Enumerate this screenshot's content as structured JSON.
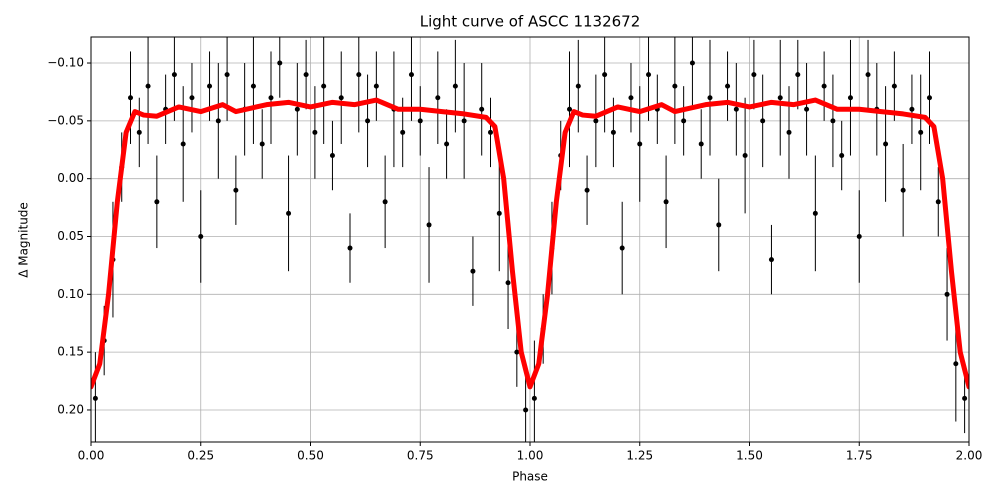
{
  "chart_data": {
    "type": "scatter",
    "title": "Light curve of ASCC 1132672",
    "x_label": "Phase",
    "y_label": "Δ Magnitude",
    "xlim": [
      0,
      2
    ],
    "ylim": [
      0.2277,
      -0.1225
    ],
    "inverted_y": true,
    "grid": true,
    "xticks": [
      {
        "value": 0,
        "label": "0.00"
      },
      {
        "value": 0.25,
        "label": "0.25"
      },
      {
        "value": 0.5,
        "label": "0.50"
      },
      {
        "value": 0.75,
        "label": "0.75"
      },
      {
        "value": 1,
        "label": "1.00"
      },
      {
        "value": 1.25,
        "label": "1.25"
      },
      {
        "value": 1.5,
        "label": "1.50"
      },
      {
        "value": 1.75,
        "label": "1.75"
      },
      {
        "value": 2,
        "label": "2.00"
      }
    ],
    "yticks": [
      {
        "value": -0.1,
        "label": "−0.10"
      },
      {
        "value": -0.05,
        "label": "−0.05"
      },
      {
        "value": 0,
        "label": "0.00"
      },
      {
        "value": 0.05,
        "label": "0.05"
      },
      {
        "value": 0.1,
        "label": "0.10"
      },
      {
        "value": 0.15,
        "label": "0.15"
      },
      {
        "value": 0.2,
        "label": "0.20"
      }
    ],
    "points": {
      "color": "#000000",
      "x": [
        0.01,
        0.03,
        0.05,
        0.07,
        0.09,
        0.11,
        0.13,
        0.15,
        0.17,
        0.19,
        0.21,
        0.23,
        0.25,
        0.27,
        0.29,
        0.31,
        0.33,
        0.35,
        0.37,
        0.39,
        0.41,
        0.43,
        0.45,
        0.47,
        0.49,
        0.51,
        0.53,
        0.55,
        0.57,
        0.59,
        0.61,
        0.63,
        0.65,
        0.67,
        0.69,
        0.71,
        0.73,
        0.75,
        0.77,
        0.79,
        0.81,
        0.83,
        0.85,
        0.87,
        0.89,
        0.91,
        0.93,
        0.95,
        0.97,
        0.99,
        1.01,
        1.03,
        1.05,
        1.07,
        1.09,
        1.11,
        1.13,
        1.15,
        1.17,
        1.19,
        1.21,
        1.23,
        1.25,
        1.27,
        1.29,
        1.31,
        1.33,
        1.35,
        1.37,
        1.39,
        1.41,
        1.43,
        1.45,
        1.47,
        1.49,
        1.51,
        1.53,
        1.55,
        1.57,
        1.59,
        1.61,
        1.63,
        1.65,
        1.67,
        1.69,
        1.71,
        1.73,
        1.75,
        1.77,
        1.79,
        1.81,
        1.83,
        1.85,
        1.87,
        1.89,
        1.91,
        1.93,
        1.95,
        1.97,
        1.99
      ],
      "y": [
        0.19,
        0.14,
        0.07,
        -0.01,
        -0.07,
        -0.04,
        -0.08,
        0.02,
        -0.06,
        -0.09,
        -0.03,
        -0.07,
        0.05,
        -0.08,
        -0.05,
        -0.09,
        0.01,
        -0.06,
        -0.08,
        -0.03,
        -0.07,
        -0.1,
        0.03,
        -0.06,
        -0.09,
        -0.04,
        -0.08,
        -0.02,
        -0.07,
        0.06,
        -0.09,
        -0.05,
        -0.08,
        0.02,
        -0.06,
        -0.04,
        -0.09,
        -0.05,
        0.04,
        -0.07,
        -0.03,
        -0.08,
        -0.05,
        0.08,
        -0.06,
        -0.04,
        0.03,
        0.09,
        0.15,
        0.2,
        0.19,
        0.13,
        0.06,
        -0.02,
        -0.06,
        -0.08,
        0.01,
        -0.05,
        -0.09,
        -0.04,
        0.06,
        -0.07,
        -0.03,
        -0.09,
        -0.06,
        0.02,
        -0.08,
        -0.05,
        -0.1,
        -0.03,
        -0.07,
        0.04,
        -0.08,
        -0.06,
        -0.02,
        -0.09,
        -0.05,
        0.07,
        -0.07,
        -0.04,
        -0.09,
        -0.06,
        0.03,
        -0.08,
        -0.05,
        -0.02,
        -0.07,
        0.05,
        -0.09,
        -0.06,
        -0.03,
        -0.08,
        0.01,
        -0.06,
        -0.04,
        -0.07,
        0.02,
        0.1,
        0.16,
        0.19
      ],
      "err": [
        0.04,
        0.03,
        0.05,
        0.03,
        0.04,
        0.03,
        0.05,
        0.04,
        0.03,
        0.04,
        0.05,
        0.03,
        0.04,
        0.03,
        0.05,
        0.04,
        0.03,
        0.04,
        0.05,
        0.03,
        0.04,
        0.03,
        0.05,
        0.04,
        0.03,
        0.04,
        0.05,
        0.03,
        0.04,
        0.03,
        0.05,
        0.04,
        0.03,
        0.04,
        0.05,
        0.03,
        0.04,
        0.03,
        0.05,
        0.04,
        0.03,
        0.04,
        0.05,
        0.03,
        0.04,
        0.03,
        0.05,
        0.04,
        0.03,
        0.04,
        0.05,
        0.03,
        0.04,
        0.03,
        0.05,
        0.04,
        0.03,
        0.04,
        0.05,
        0.03,
        0.04,
        0.03,
        0.05,
        0.04,
        0.03,
        0.04,
        0.05,
        0.03,
        0.04,
        0.03,
        0.05,
        0.04,
        0.03,
        0.04,
        0.05,
        0.03,
        0.04,
        0.03,
        0.05,
        0.04,
        0.03,
        0.04,
        0.05,
        0.03,
        0.04,
        0.03,
        0.05,
        0.04,
        0.03,
        0.04,
        0.05,
        0.03,
        0.04,
        0.03,
        0.05,
        0.04,
        0.03,
        0.04,
        0.05,
        0.03
      ]
    },
    "model": {
      "color": "#ff0000",
      "x": [
        0,
        0.02,
        0.04,
        0.06,
        0.08,
        0.1,
        0.12,
        0.15,
        0.2,
        0.25,
        0.3,
        0.33,
        0.4,
        0.45,
        0.5,
        0.55,
        0.6,
        0.65,
        0.7,
        0.75,
        0.8,
        0.85,
        0.9,
        0.92,
        0.94,
        0.96,
        0.98,
        1,
        1.02,
        1.04,
        1.06,
        1.08,
        1.1,
        1.12,
        1.15,
        1.2,
        1.25,
        1.3,
        1.33,
        1.4,
        1.45,
        1.5,
        1.55,
        1.6,
        1.65,
        1.7,
        1.75,
        1.8,
        1.85,
        1.9,
        1.92,
        1.94,
        1.96,
        1.98,
        2
      ],
      "y": [
        0.18,
        0.16,
        0.1,
        0.02,
        -0.04,
        -0.058,
        -0.055,
        -0.054,
        -0.062,
        -0.058,
        -0.064,
        -0.058,
        -0.064,
        -0.066,
        -0.062,
        -0.066,
        -0.064,
        -0.068,
        -0.06,
        -0.06,
        -0.058,
        -0.056,
        -0.053,
        -0.045,
        0,
        0.08,
        0.15,
        0.18,
        0.16,
        0.1,
        0.02,
        -0.04,
        -0.058,
        -0.055,
        -0.054,
        -0.062,
        -0.058,
        -0.064,
        -0.058,
        -0.064,
        -0.066,
        -0.062,
        -0.066,
        -0.064,
        -0.068,
        -0.06,
        -0.06,
        -0.058,
        -0.056,
        -0.053,
        -0.045,
        0,
        0.08,
        0.15,
        0.18
      ]
    }
  }
}
